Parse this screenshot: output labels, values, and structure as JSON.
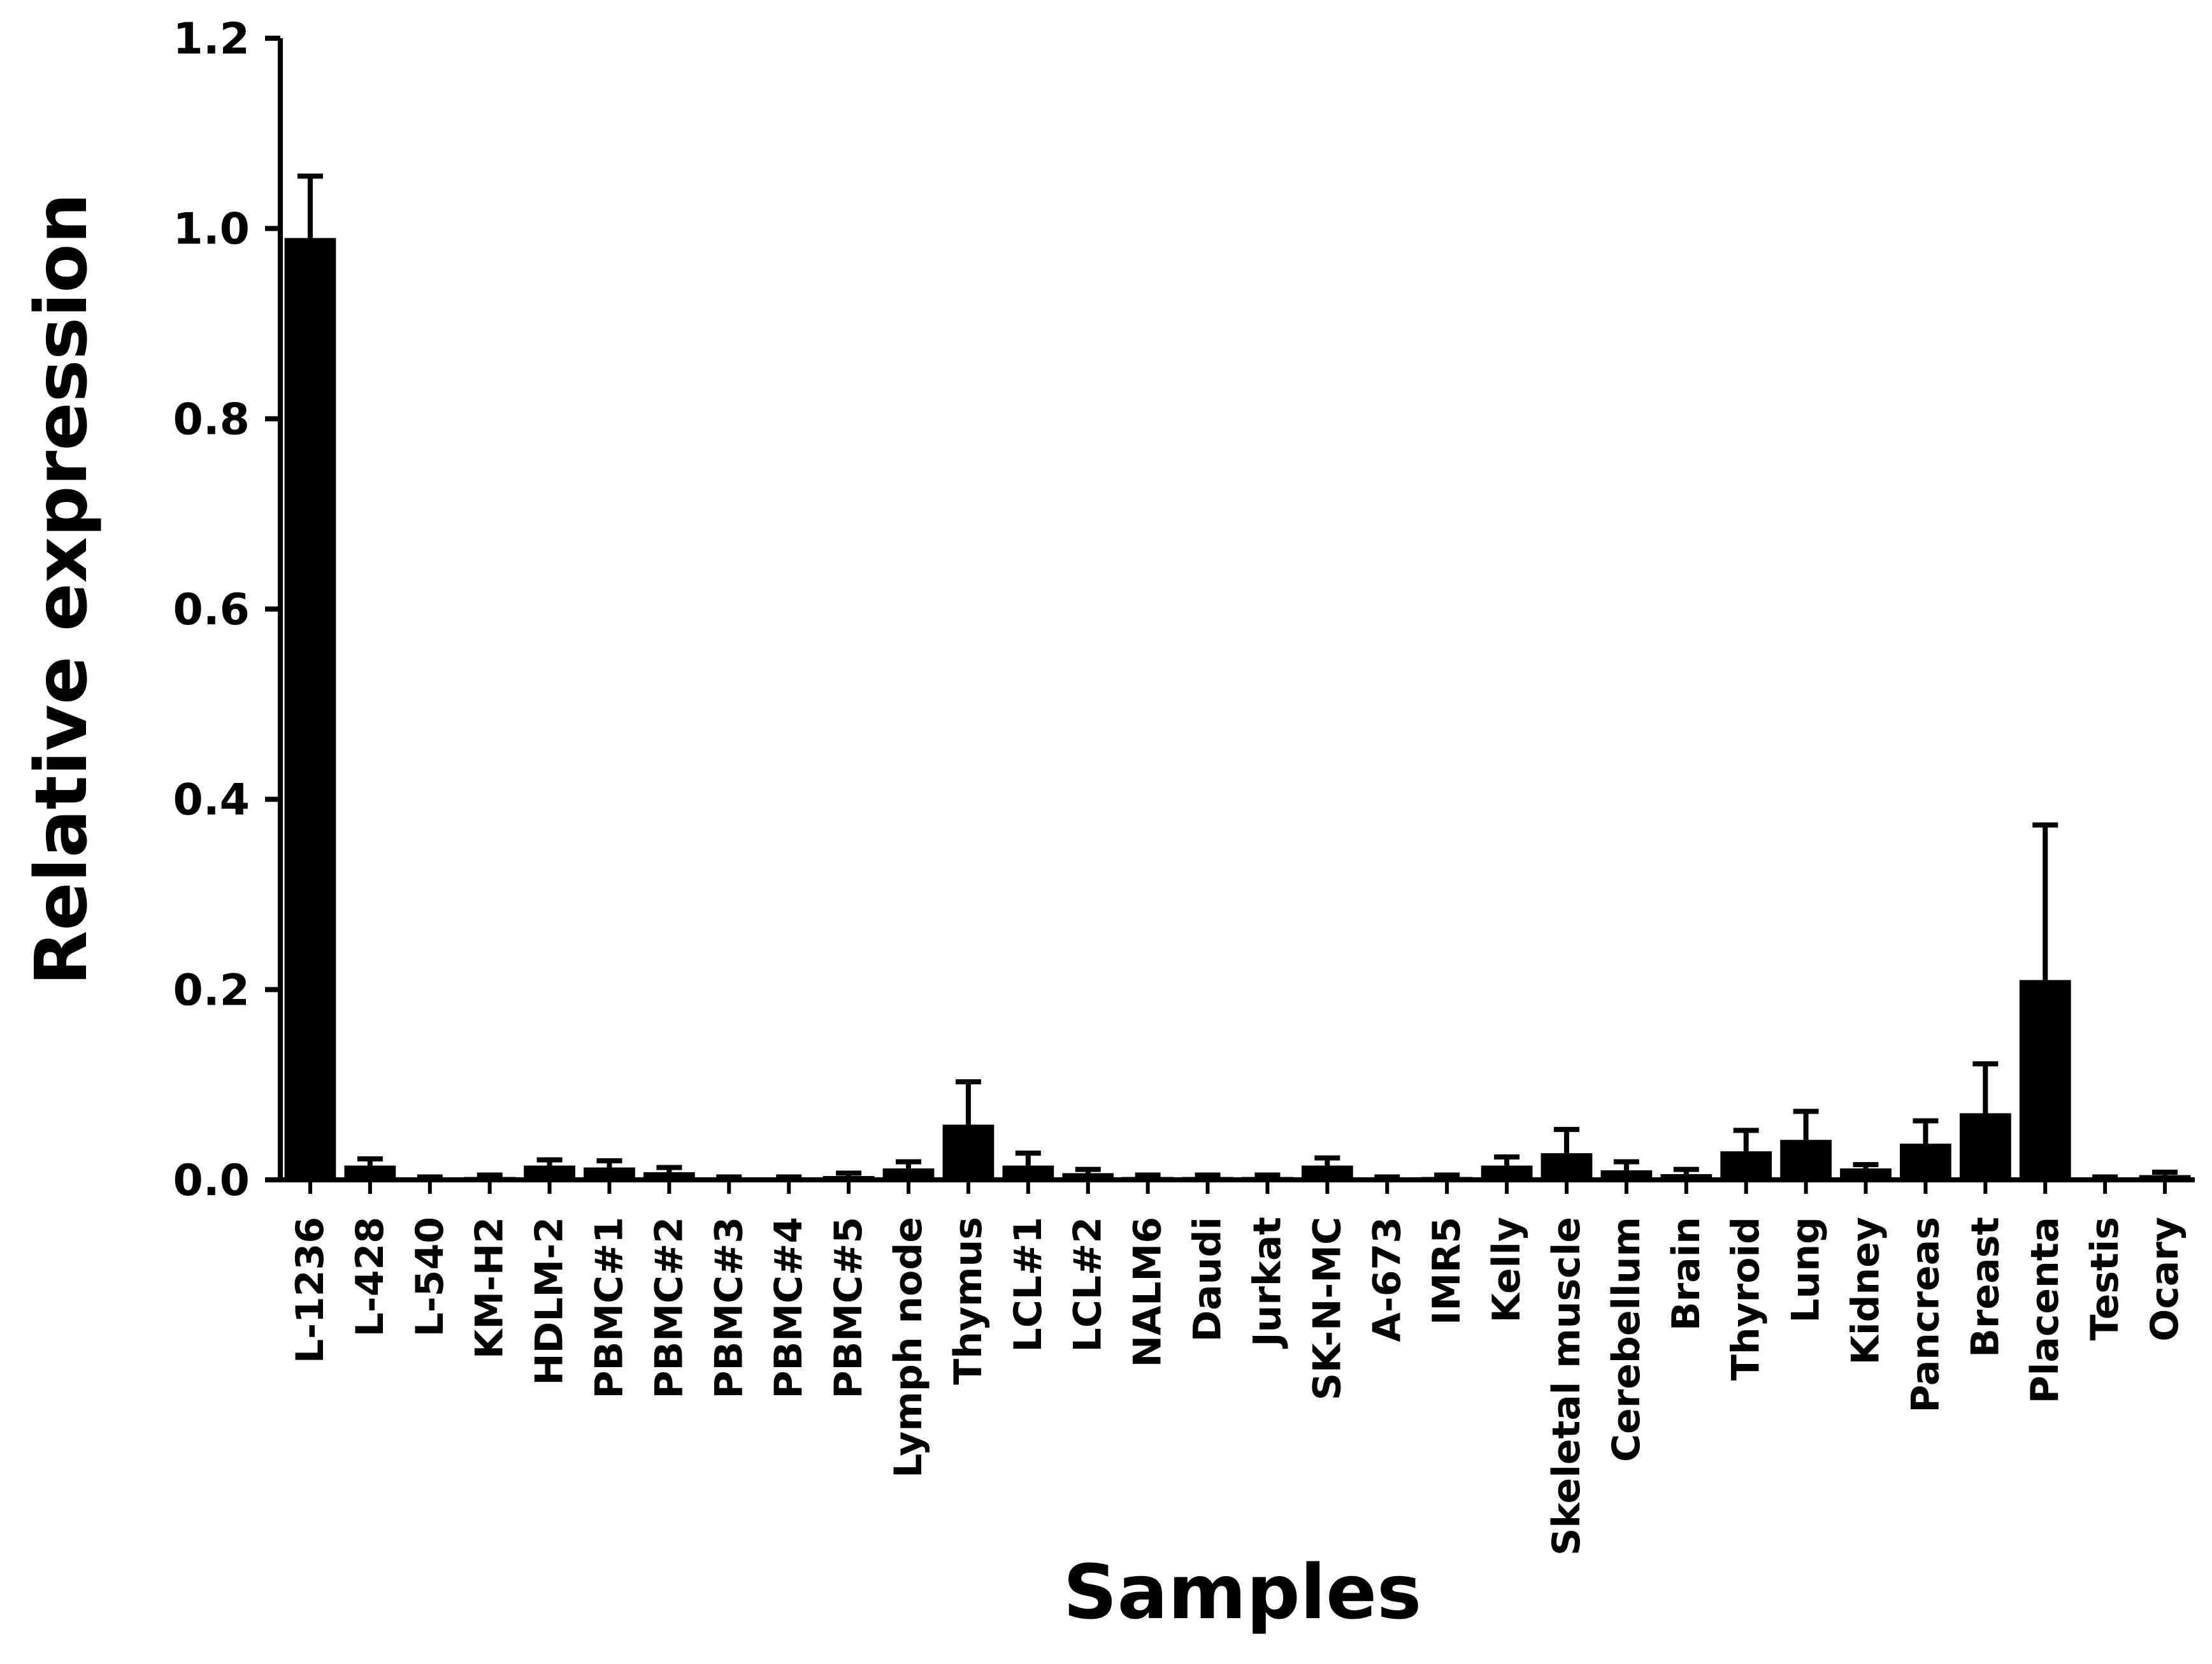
{
  "chart_data": {
    "type": "bar",
    "title": "",
    "xlabel": "Samples",
    "ylabel": "Relative expression",
    "ylim": [
      0,
      1.2
    ],
    "yticks": [
      "0.0",
      "0.2",
      "0.4",
      "0.6",
      "0.8",
      "1.0",
      "1.2"
    ],
    "grid": false,
    "legend": "none",
    "bar_color": "#000000",
    "categories": [
      "L-1236",
      "L-428",
      "L-540",
      "KM-H2",
      "HDLM-2",
      "PBMC#1",
      "PBMC#2",
      "PBMC#3",
      "PBMC#4",
      "PBMC#5",
      "Lymph node",
      "Thymus",
      "LCL#1",
      "LCL#2",
      "NALM6",
      "Daudi",
      "Jurkat",
      "SK-N-MC",
      "A-673",
      "IMR5",
      "Kelly",
      "Skeletal muscle",
      "Cerebellum",
      "Brain",
      "Thyroid",
      "Lung",
      "Kidney",
      "Pancreas",
      "Breast",
      "Placenta",
      "Testis",
      "Ocary"
    ],
    "values": [
      0.99,
      0.015,
      0.002,
      0.003,
      0.015,
      0.013,
      0.008,
      0.002,
      0.002,
      0.004,
      0.012,
      0.058,
      0.015,
      0.007,
      0.003,
      0.003,
      0.003,
      0.015,
      0.002,
      0.003,
      0.015,
      0.028,
      0.01,
      0.006,
      0.03,
      0.042,
      0.012,
      0.038,
      0.07,
      0.21,
      0.002,
      0.005
    ],
    "errors": [
      0.065,
      0.007,
      0.001,
      0.002,
      0.006,
      0.007,
      0.005,
      0.001,
      0.001,
      0.003,
      0.007,
      0.045,
      0.013,
      0.004,
      0.002,
      0.002,
      0.002,
      0.008,
      0.001,
      0.002,
      0.009,
      0.025,
      0.009,
      0.005,
      0.022,
      0.03,
      0.004,
      0.024,
      0.052,
      0.163,
      0.001,
      0.003
    ]
  }
}
